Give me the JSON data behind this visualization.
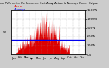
{
  "title": "Solar PV/Inverter Performance East Array Actual & Average Power Output",
  "bg_color": "#cccccc",
  "plot_bg_color": "#ffffff",
  "grid_color": "#999999",
  "bar_color": "#dd0000",
  "avg_line_color": "#0000ee",
  "avg_line_y": 0.33,
  "ylim": [
    0,
    1.0
  ],
  "ytick_labels": [
    "1500W",
    "1200W",
    "900W",
    "600W",
    "300W",
    "0W"
  ],
  "ytick_positions": [
    1.0,
    0.8,
    0.6,
    0.4,
    0.2,
    0.0
  ],
  "xlim": [
    0,
    365
  ],
  "num_points": 365,
  "legend_actual_color": "#dd0000",
  "legend_avg_color": "#0000ee",
  "legend_actual": "Actual",
  "legend_avg": "Average"
}
